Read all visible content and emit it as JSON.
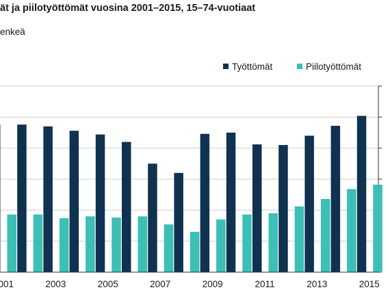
{
  "chart_data": {
    "type": "bar",
    "title": "ät ja piilotyöttömät vuosina 2001–2015, 15–74-vuotiaat",
    "ylabel": "enkeä",
    "categories": [
      "2001",
      "2002",
      "2003",
      "2004",
      "2005",
      "2006",
      "2007",
      "2008",
      "2009",
      "2010",
      "2011",
      "2012",
      "2013",
      "2014",
      "2015"
    ],
    "x_tick_labels": [
      "2001",
      "2003",
      "2005",
      "2007",
      "2009",
      "2011",
      "2013",
      "2015"
    ],
    "ylim": [
      0,
      300
    ],
    "grid": true,
    "legend_position": "top-right",
    "series": [
      {
        "name": "Työttömät",
        "color": "#0f3250",
        "values": [
          238,
          238,
          235,
          228,
          222,
          210,
          175,
          160,
          223,
          225,
          206,
          205,
          220,
          236,
          252
        ]
      },
      {
        "name": "Piilotyöttömät",
        "color": "#3cbfb4",
        "values": [
          93,
          93,
          87,
          90,
          88,
          90,
          77,
          65,
          85,
          93,
          95,
          106,
          118,
          134,
          141
        ]
      }
    ]
  }
}
